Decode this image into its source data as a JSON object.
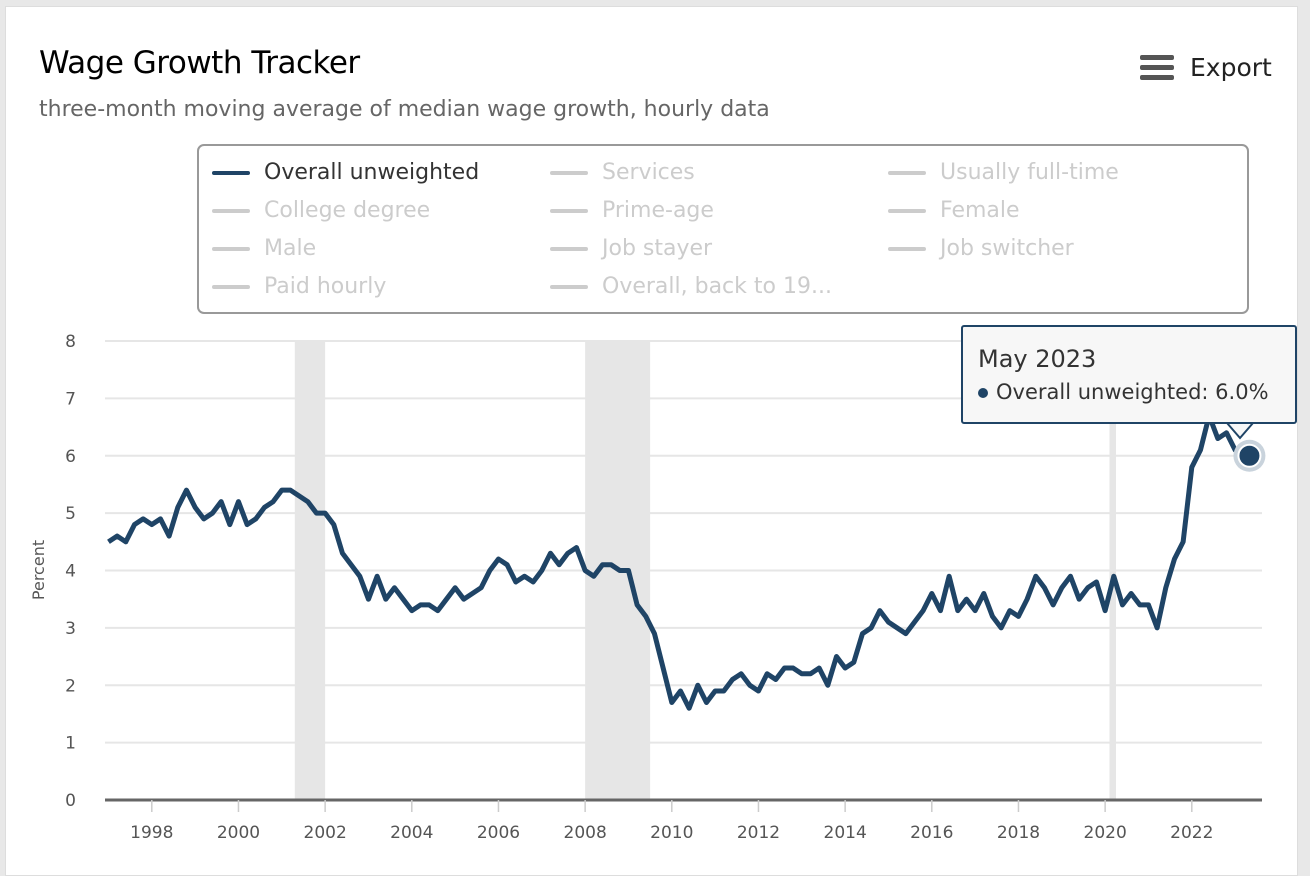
{
  "title": "Wage Growth Tracker",
  "subtitle": "three-month moving average of median wage growth, hourly data",
  "export_label": "Export",
  "legend": [
    {
      "label": "Overall unweighted",
      "active": true
    },
    {
      "label": "Services",
      "active": false
    },
    {
      "label": "Usually full-time",
      "active": false
    },
    {
      "label": "College degree",
      "active": false
    },
    {
      "label": "Prime-age",
      "active": false
    },
    {
      "label": "Female",
      "active": false
    },
    {
      "label": "Male",
      "active": false
    },
    {
      "label": "Job stayer",
      "active": false
    },
    {
      "label": "Job switcher",
      "active": false
    },
    {
      "label": "Paid hourly",
      "active": false
    },
    {
      "label": "Overall, back to 19...",
      "active": false
    }
  ],
  "tooltip": {
    "date": "May 2023",
    "series": "Overall unweighted",
    "value": "6.0%"
  },
  "colors": {
    "series": "#1f4466",
    "recession": "#e6e6e6",
    "grid": "#e6e6e6"
  },
  "chart_data": {
    "type": "line",
    "ylabel": "Percent",
    "ylim": [
      0,
      8
    ],
    "yticks": [
      0,
      1,
      2,
      3,
      4,
      5,
      6,
      7,
      8
    ],
    "xlim": [
      1996.92,
      2023.62
    ],
    "xticks": [
      1998,
      2000,
      2002,
      2004,
      2006,
      2008,
      2010,
      2012,
      2014,
      2016,
      2018,
      2020,
      2022
    ],
    "grid": true,
    "legend_position": "top",
    "recessions": [
      [
        2001.3,
        2002.0
      ],
      [
        2008.0,
        2009.5
      ],
      [
        2020.1,
        2020.25
      ]
    ],
    "series": [
      {
        "name": "Overall unweighted",
        "points": [
          [
            1997.0,
            4.5
          ],
          [
            1997.2,
            4.6
          ],
          [
            1997.4,
            4.5
          ],
          [
            1997.6,
            4.8
          ],
          [
            1997.8,
            4.9
          ],
          [
            1998.0,
            4.8
          ],
          [
            1998.2,
            4.9
          ],
          [
            1998.4,
            4.6
          ],
          [
            1998.6,
            5.1
          ],
          [
            1998.8,
            5.4
          ],
          [
            1999.0,
            5.1
          ],
          [
            1999.2,
            4.9
          ],
          [
            1999.4,
            5.0
          ],
          [
            1999.6,
            5.2
          ],
          [
            1999.8,
            4.8
          ],
          [
            2000.0,
            5.2
          ],
          [
            2000.2,
            4.8
          ],
          [
            2000.4,
            4.9
          ],
          [
            2000.6,
            5.1
          ],
          [
            2000.8,
            5.2
          ],
          [
            2001.0,
            5.4
          ],
          [
            2001.2,
            5.4
          ],
          [
            2001.4,
            5.3
          ],
          [
            2001.6,
            5.2
          ],
          [
            2001.8,
            5.0
          ],
          [
            2002.0,
            5.0
          ],
          [
            2002.2,
            4.8
          ],
          [
            2002.4,
            4.3
          ],
          [
            2002.6,
            4.1
          ],
          [
            2002.8,
            3.9
          ],
          [
            2003.0,
            3.5
          ],
          [
            2003.2,
            3.9
          ],
          [
            2003.4,
            3.5
          ],
          [
            2003.6,
            3.7
          ],
          [
            2003.8,
            3.5
          ],
          [
            2004.0,
            3.3
          ],
          [
            2004.2,
            3.4
          ],
          [
            2004.4,
            3.4
          ],
          [
            2004.6,
            3.3
          ],
          [
            2004.8,
            3.5
          ],
          [
            2005.0,
            3.7
          ],
          [
            2005.2,
            3.5
          ],
          [
            2005.4,
            3.6
          ],
          [
            2005.6,
            3.7
          ],
          [
            2005.8,
            4.0
          ],
          [
            2006.0,
            4.2
          ],
          [
            2006.2,
            4.1
          ],
          [
            2006.4,
            3.8
          ],
          [
            2006.6,
            3.9
          ],
          [
            2006.8,
            3.8
          ],
          [
            2007.0,
            4.0
          ],
          [
            2007.2,
            4.3
          ],
          [
            2007.4,
            4.1
          ],
          [
            2007.6,
            4.3
          ],
          [
            2007.8,
            4.4
          ],
          [
            2008.0,
            4.0
          ],
          [
            2008.2,
            3.9
          ],
          [
            2008.4,
            4.1
          ],
          [
            2008.6,
            4.1
          ],
          [
            2008.8,
            4.0
          ],
          [
            2009.0,
            4.0
          ],
          [
            2009.2,
            3.4
          ],
          [
            2009.4,
            3.2
          ],
          [
            2009.6,
            2.9
          ],
          [
            2009.8,
            2.3
          ],
          [
            2010.0,
            1.7
          ],
          [
            2010.2,
            1.9
          ],
          [
            2010.4,
            1.6
          ],
          [
            2010.6,
            2.0
          ],
          [
            2010.8,
            1.7
          ],
          [
            2011.0,
            1.9
          ],
          [
            2011.2,
            1.9
          ],
          [
            2011.4,
            2.1
          ],
          [
            2011.6,
            2.2
          ],
          [
            2011.8,
            2.0
          ],
          [
            2012.0,
            1.9
          ],
          [
            2012.2,
            2.2
          ],
          [
            2012.4,
            2.1
          ],
          [
            2012.6,
            2.3
          ],
          [
            2012.8,
            2.3
          ],
          [
            2013.0,
            2.2
          ],
          [
            2013.2,
            2.2
          ],
          [
            2013.4,
            2.3
          ],
          [
            2013.6,
            2.0
          ],
          [
            2013.8,
            2.5
          ],
          [
            2014.0,
            2.3
          ],
          [
            2014.2,
            2.4
          ],
          [
            2014.4,
            2.9
          ],
          [
            2014.6,
            3.0
          ],
          [
            2014.8,
            3.3
          ],
          [
            2015.0,
            3.1
          ],
          [
            2015.2,
            3.0
          ],
          [
            2015.4,
            2.9
          ],
          [
            2015.6,
            3.1
          ],
          [
            2015.8,
            3.3
          ],
          [
            2016.0,
            3.6
          ],
          [
            2016.2,
            3.3
          ],
          [
            2016.4,
            3.9
          ],
          [
            2016.6,
            3.3
          ],
          [
            2016.8,
            3.5
          ],
          [
            2017.0,
            3.3
          ],
          [
            2017.2,
            3.6
          ],
          [
            2017.4,
            3.2
          ],
          [
            2017.6,
            3.0
          ],
          [
            2017.8,
            3.3
          ],
          [
            2018.0,
            3.2
          ],
          [
            2018.2,
            3.5
          ],
          [
            2018.4,
            3.9
          ],
          [
            2018.6,
            3.7
          ],
          [
            2018.8,
            3.4
          ],
          [
            2019.0,
            3.7
          ],
          [
            2019.2,
            3.9
          ],
          [
            2019.4,
            3.5
          ],
          [
            2019.6,
            3.7
          ],
          [
            2019.8,
            3.8
          ],
          [
            2020.0,
            3.3
          ],
          [
            2020.2,
            3.9
          ],
          [
            2020.4,
            3.4
          ],
          [
            2020.6,
            3.6
          ],
          [
            2020.8,
            3.4
          ],
          [
            2021.0,
            3.4
          ],
          [
            2021.2,
            3.0
          ],
          [
            2021.4,
            3.7
          ],
          [
            2021.6,
            4.2
          ],
          [
            2021.8,
            4.5
          ],
          [
            2022.0,
            5.8
          ],
          [
            2022.2,
            6.1
          ],
          [
            2022.4,
            6.7
          ],
          [
            2022.6,
            6.3
          ],
          [
            2022.8,
            6.4
          ],
          [
            2023.0,
            6.1
          ],
          [
            2023.33,
            6.0
          ]
        ]
      }
    ]
  }
}
